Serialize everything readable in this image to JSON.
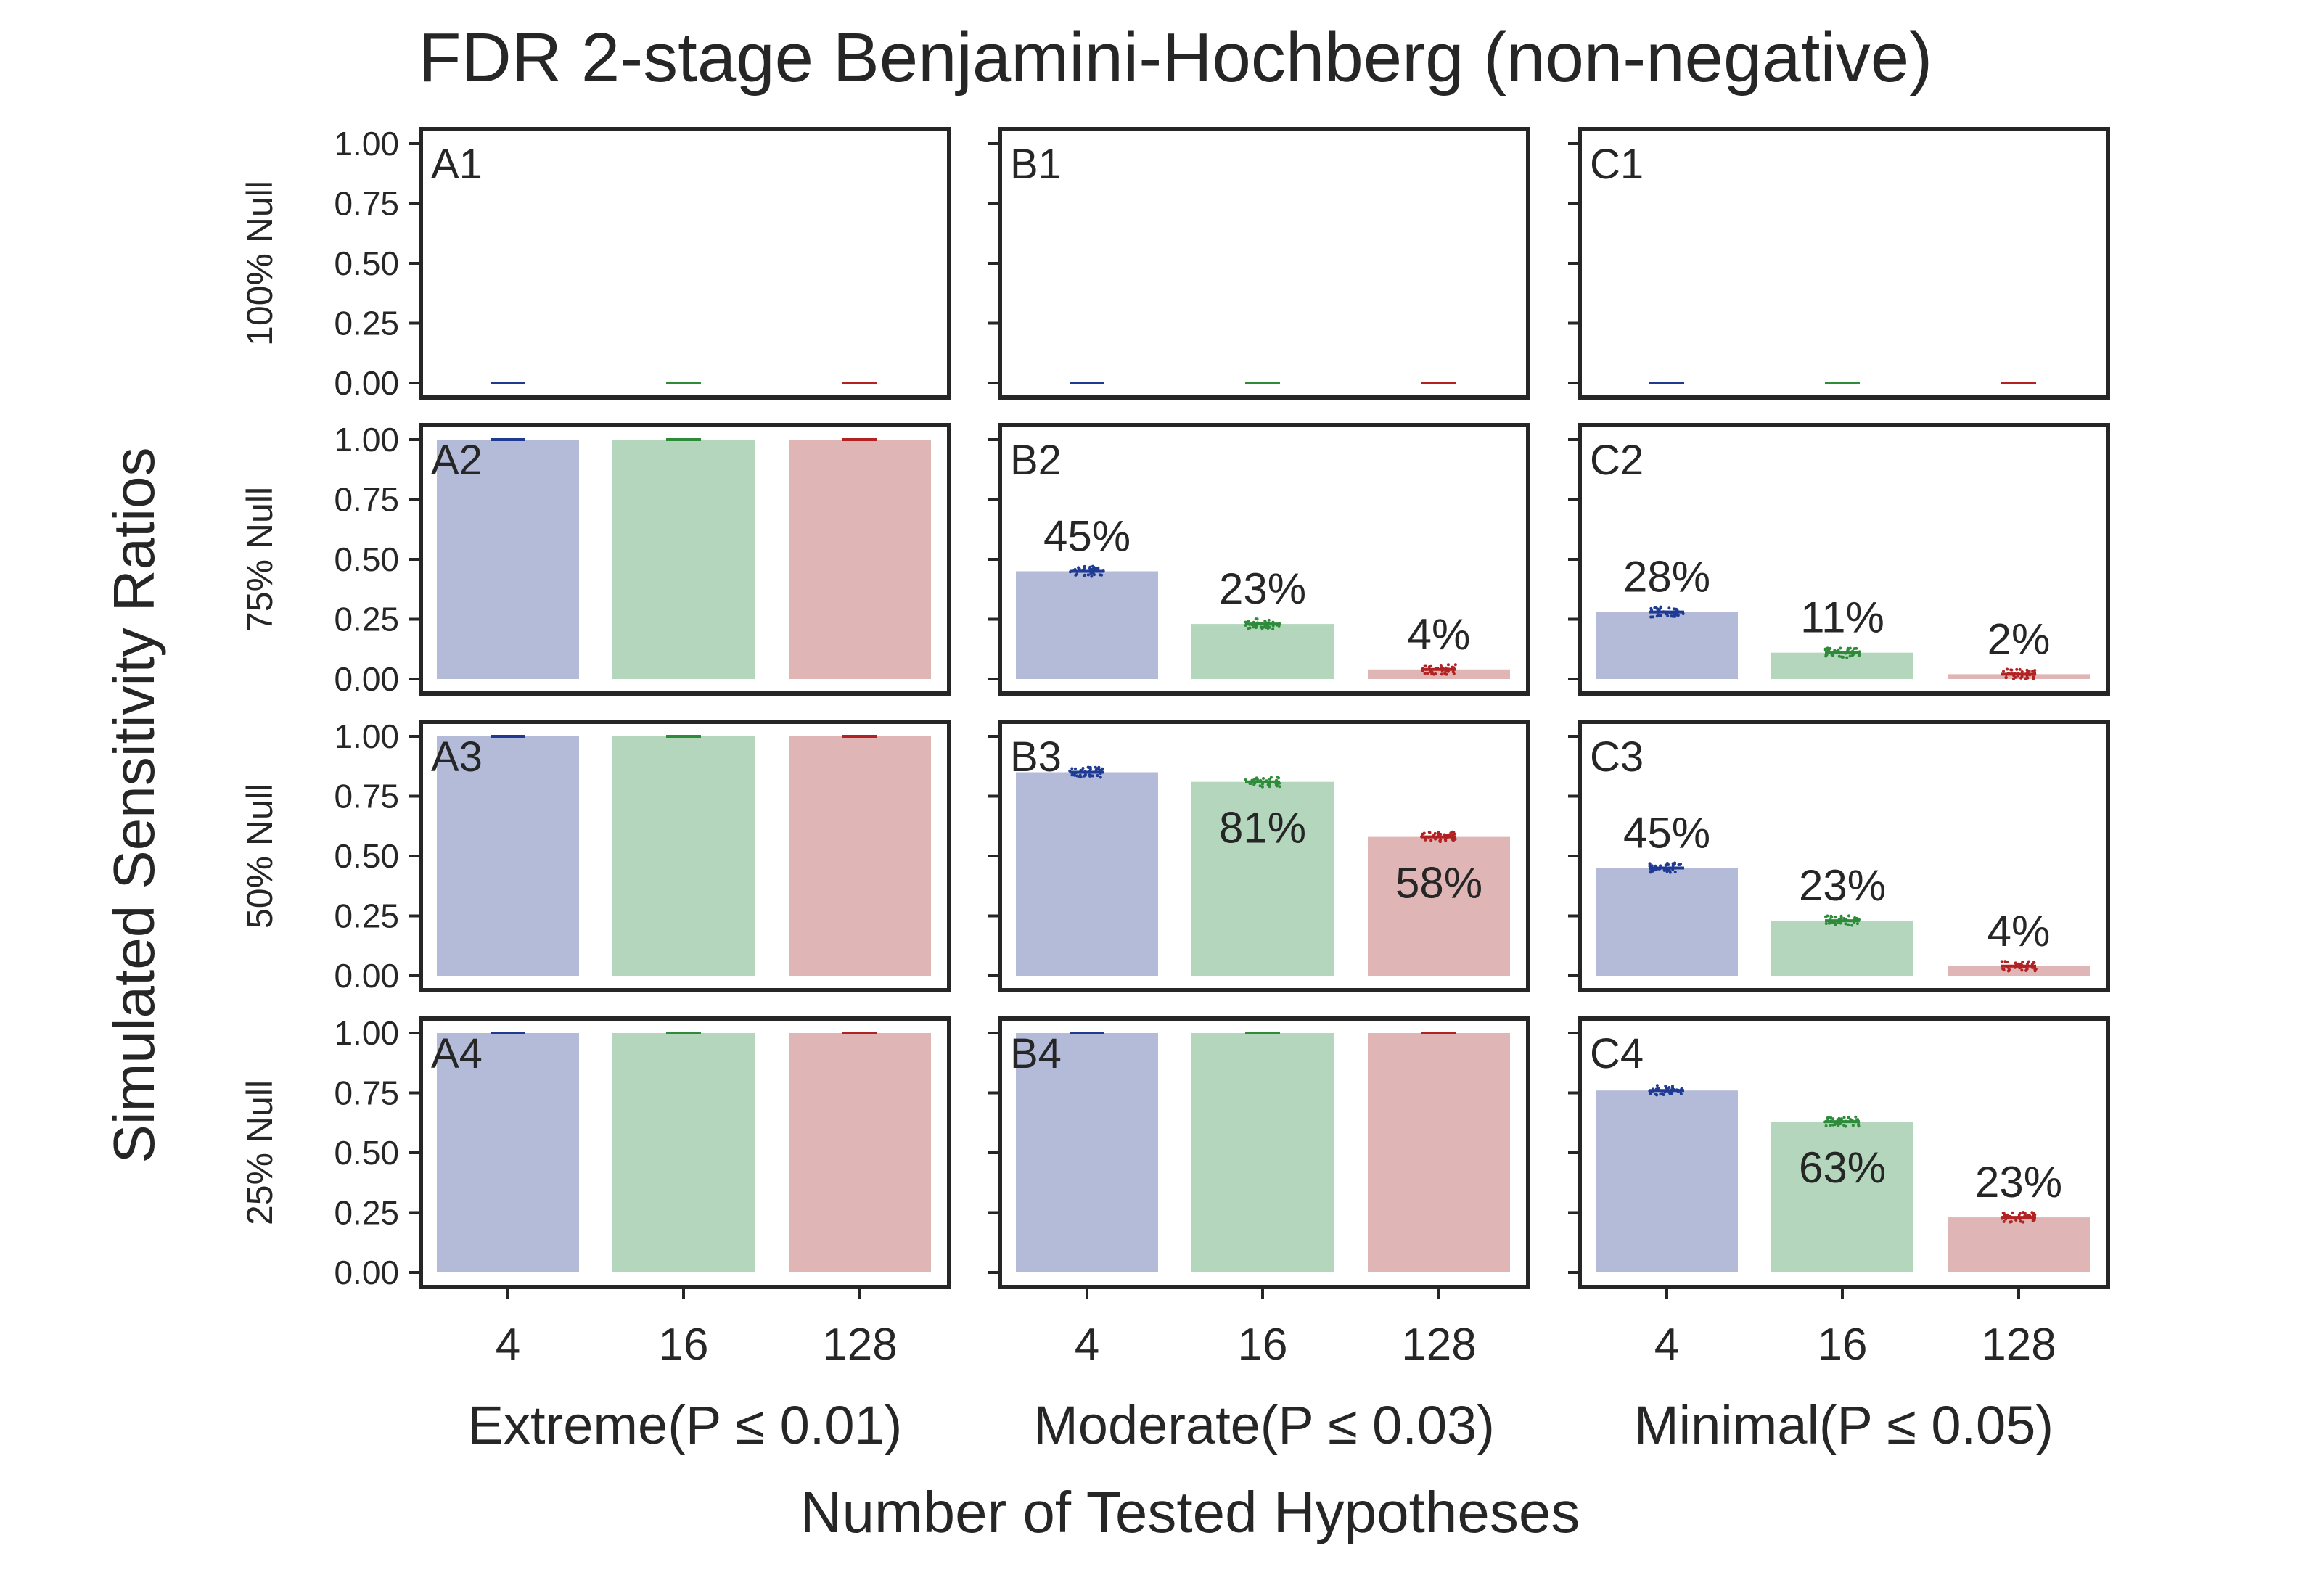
{
  "chart_data": {
    "type": "bar",
    "title": "FDR 2-stage Benjamini-Hochberg (non-negative)",
    "ylabel": "Simulated Sensitivity Ratios",
    "xlabel": "Number of Tested Hypotheses",
    "categories": [
      "4",
      "16",
      "128"
    ],
    "ylim": [
      0,
      1
    ],
    "yticks": [
      "0.00",
      "0.25",
      "0.50",
      "0.75",
      "1.00"
    ],
    "grid": false,
    "colors": {
      "bars": [
        "#b3bbd9",
        "#b3d6bd",
        "#dfb5b5"
      ],
      "points": [
        "#1f3a93",
        "#2e8b3a",
        "#b22222"
      ],
      "frame": "#262626"
    },
    "columns": [
      "Extreme(P ≤ 0.01)",
      "Moderate(P ≤ 0.03)",
      "Minimal(P ≤ 0.05)"
    ],
    "rows": [
      "100% Null",
      "75% Null",
      "50% Null",
      "25% Null"
    ],
    "panels": [
      [
        {
          "id": "A1",
          "values": [
            0,
            0,
            0
          ],
          "labels": [
            "",
            "",
            ""
          ]
        },
        {
          "id": "B1",
          "values": [
            0,
            0,
            0
          ],
          "labels": [
            "",
            "",
            ""
          ]
        },
        {
          "id": "C1",
          "values": [
            0,
            0,
            0
          ],
          "labels": [
            "",
            "",
            ""
          ]
        }
      ],
      [
        {
          "id": "A2",
          "values": [
            1.0,
            1.0,
            1.0
          ],
          "labels": [
            "",
            "",
            ""
          ]
        },
        {
          "id": "B2",
          "values": [
            0.45,
            0.23,
            0.04
          ],
          "labels": [
            "45%",
            "23%",
            "4%"
          ]
        },
        {
          "id": "C2",
          "values": [
            0.28,
            0.11,
            0.02
          ],
          "labels": [
            "28%",
            "11%",
            "2%"
          ]
        }
      ],
      [
        {
          "id": "A3",
          "values": [
            1.0,
            1.0,
            1.0
          ],
          "labels": [
            "",
            "",
            ""
          ]
        },
        {
          "id": "B3",
          "values": [
            0.85,
            0.81,
            0.58
          ],
          "labels": [
            "",
            "81%",
            "58%"
          ]
        },
        {
          "id": "C3",
          "values": [
            0.45,
            0.23,
            0.04
          ],
          "labels": [
            "45%",
            "23%",
            "4%"
          ]
        }
      ],
      [
        {
          "id": "A4",
          "values": [
            1.0,
            1.0,
            1.0
          ],
          "labels": [
            "",
            "",
            ""
          ]
        },
        {
          "id": "B4",
          "values": [
            1.0,
            1.0,
            1.0
          ],
          "labels": [
            "",
            "",
            ""
          ]
        },
        {
          "id": "C4",
          "values": [
            0.76,
            0.63,
            0.23
          ],
          "labels": [
            "",
            "63%",
            "23%"
          ]
        }
      ]
    ]
  }
}
